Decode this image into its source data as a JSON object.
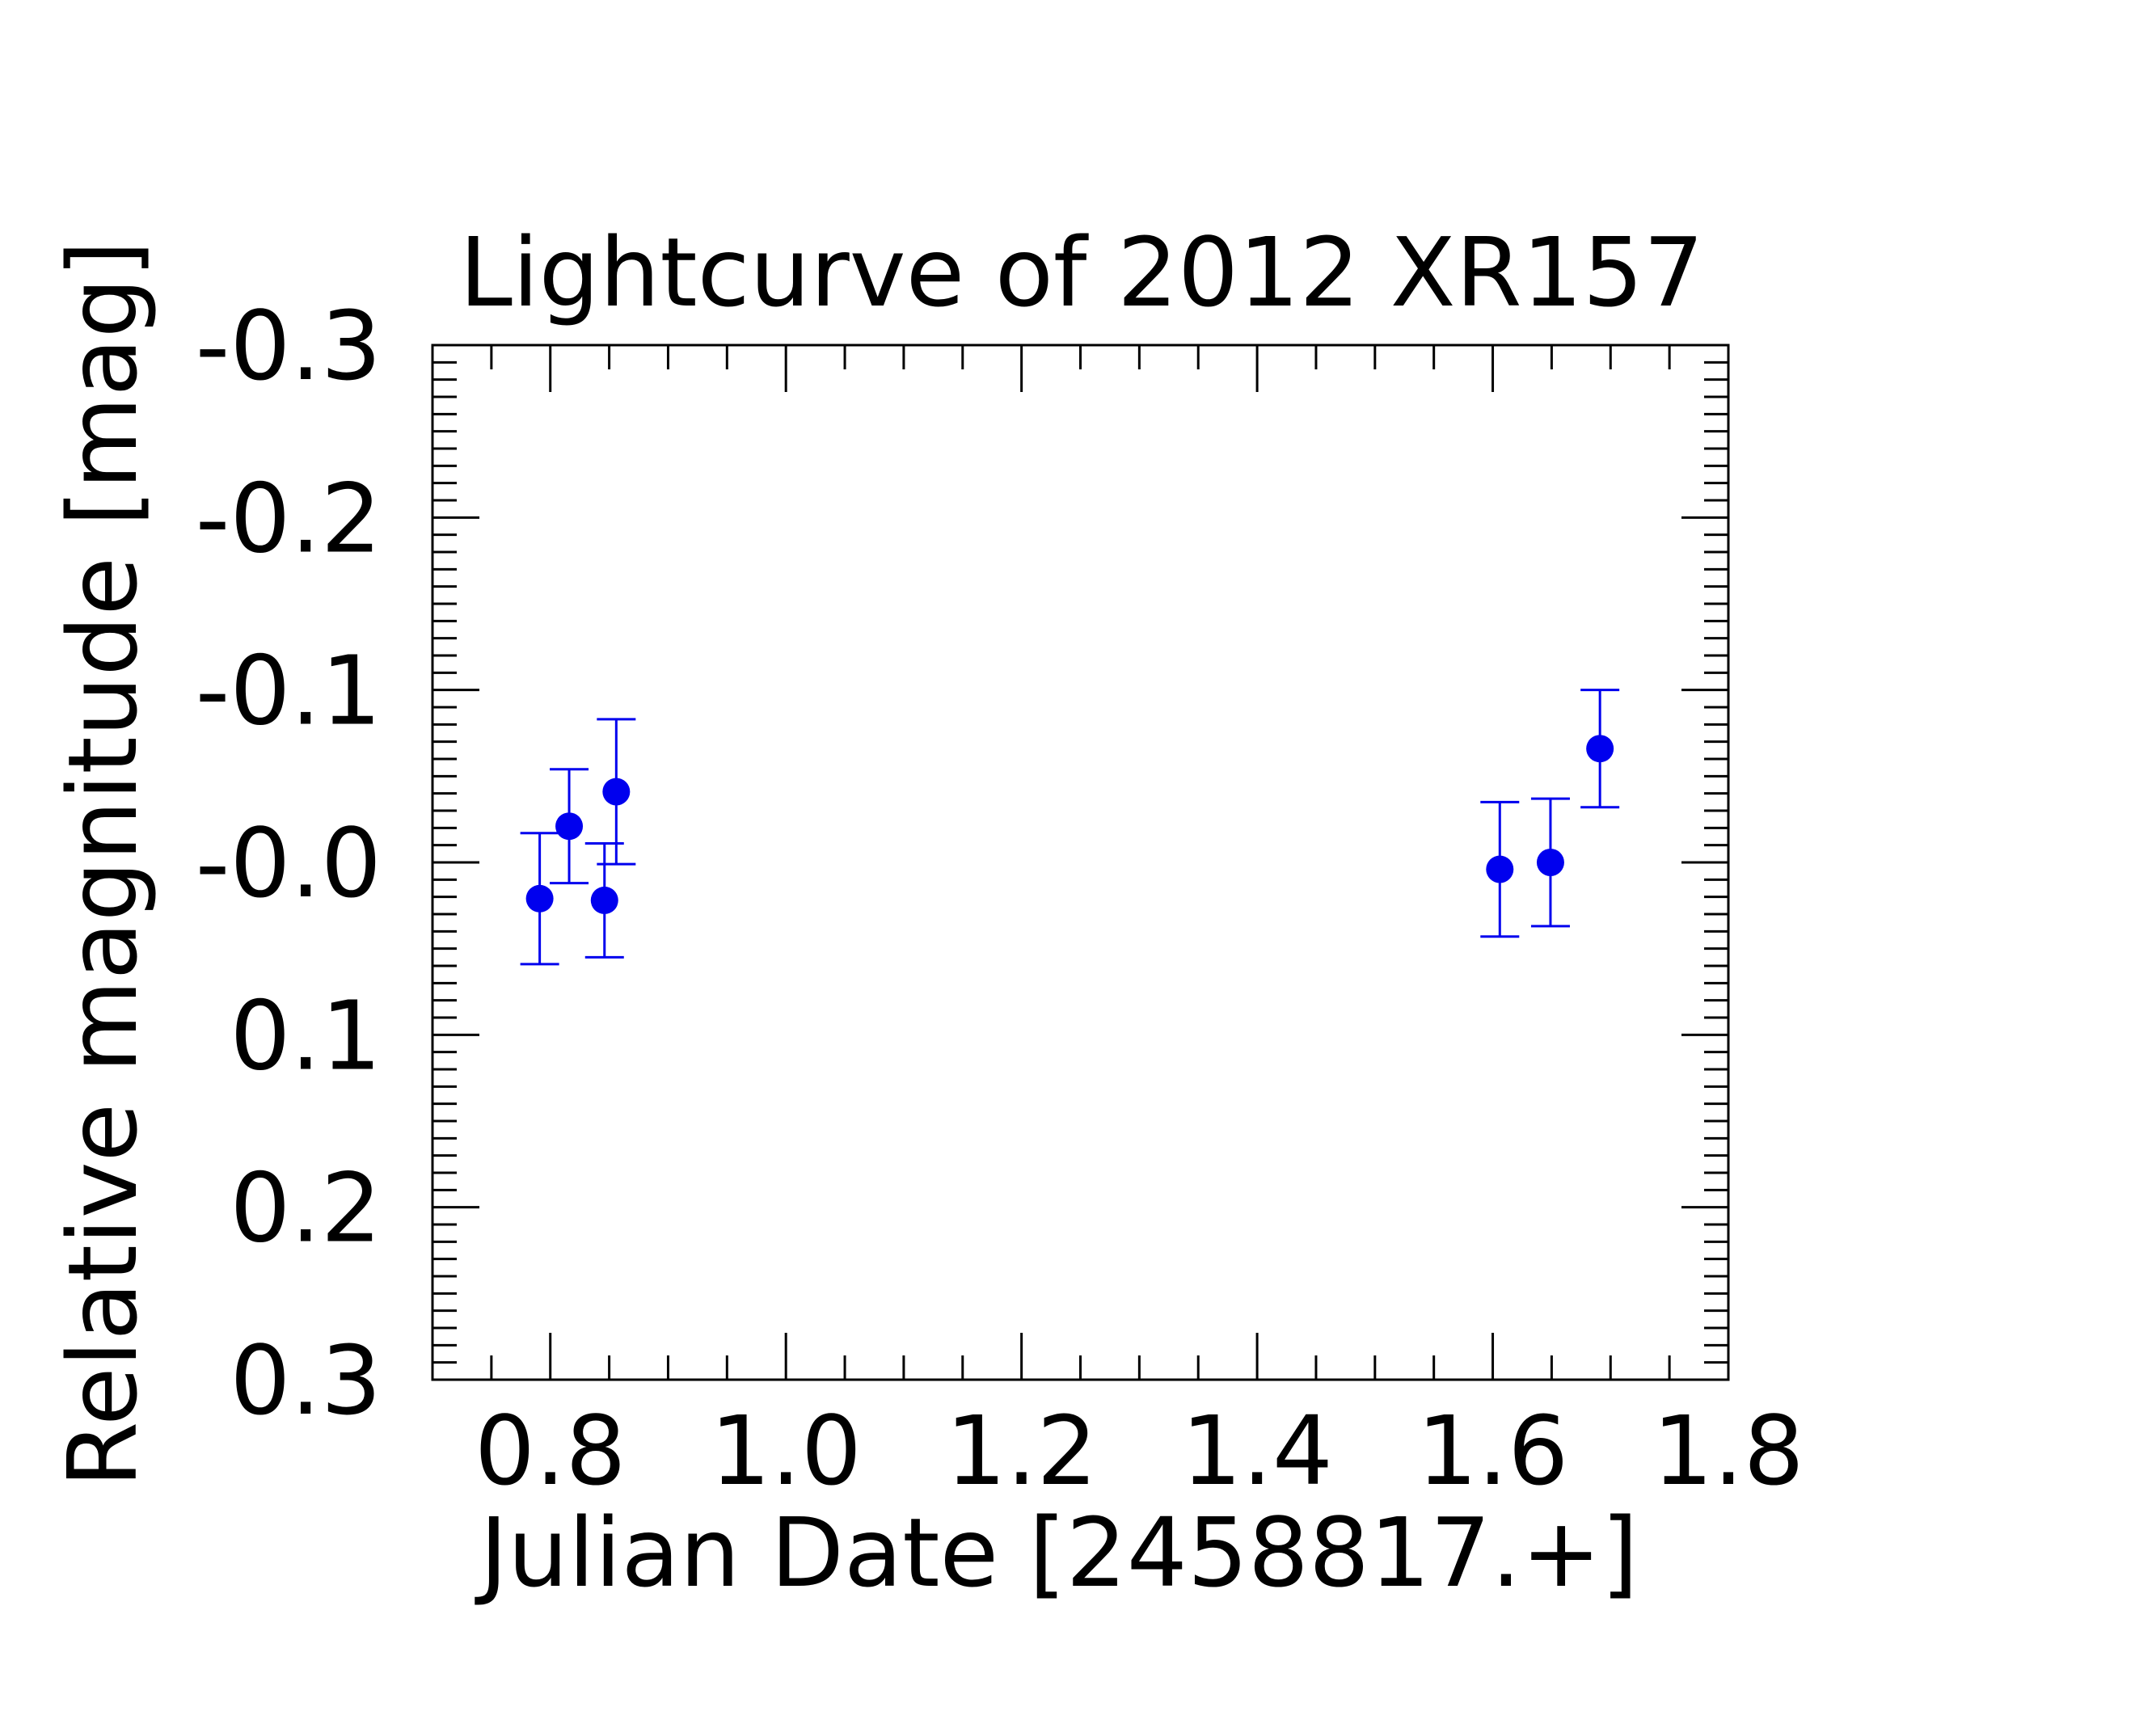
{
  "chart_data": {
    "type": "scatter",
    "title": "Lightcurve of 2012 XR157",
    "xlabel": "Julian Date [2458817.+]",
    "ylabel": "Relative magnitude [mag]",
    "xlim": [
      0.7,
      1.8
    ],
    "ylim": [
      -0.3,
      0.3
    ],
    "y_inverted": true,
    "x_ticks": [
      {
        "value": 0.8,
        "label": "0.8"
      },
      {
        "value": 1.0,
        "label": "1.0"
      },
      {
        "value": 1.2,
        "label": "1.2"
      },
      {
        "value": 1.4,
        "label": "1.4"
      },
      {
        "value": 1.6,
        "label": "1.6"
      },
      {
        "value": 1.8,
        "label": "1.8"
      }
    ],
    "y_ticks": [
      {
        "value": -0.3,
        "label": "-0.3"
      },
      {
        "value": -0.2,
        "label": "-0.2"
      },
      {
        "value": -0.1,
        "label": "-0.1"
      },
      {
        "value": 0.0,
        "label": "-0.0"
      },
      {
        "value": 0.1,
        "label": "0.1"
      },
      {
        "value": 0.2,
        "label": "0.2"
      },
      {
        "value": 0.3,
        "label": "0.3"
      }
    ],
    "x_minor_step": 0.05,
    "y_minor_step": 0.01,
    "grid": false,
    "marker_color": "#0000ee",
    "series": [
      {
        "points": [
          {
            "x": 0.791,
            "y": 0.021,
            "err": 0.038
          },
          {
            "x": 0.816,
            "y": -0.021,
            "err": 0.033
          },
          {
            "x": 0.846,
            "y": 0.022,
            "err": 0.033
          },
          {
            "x": 0.856,
            "y": -0.041,
            "err": 0.042
          },
          {
            "x": 1.606,
            "y": 0.004,
            "err": 0.039
          },
          {
            "x": 1.649,
            "y": 0.0,
            "err": 0.037
          },
          {
            "x": 1.691,
            "y": -0.066,
            "err": 0.034
          }
        ]
      }
    ]
  }
}
